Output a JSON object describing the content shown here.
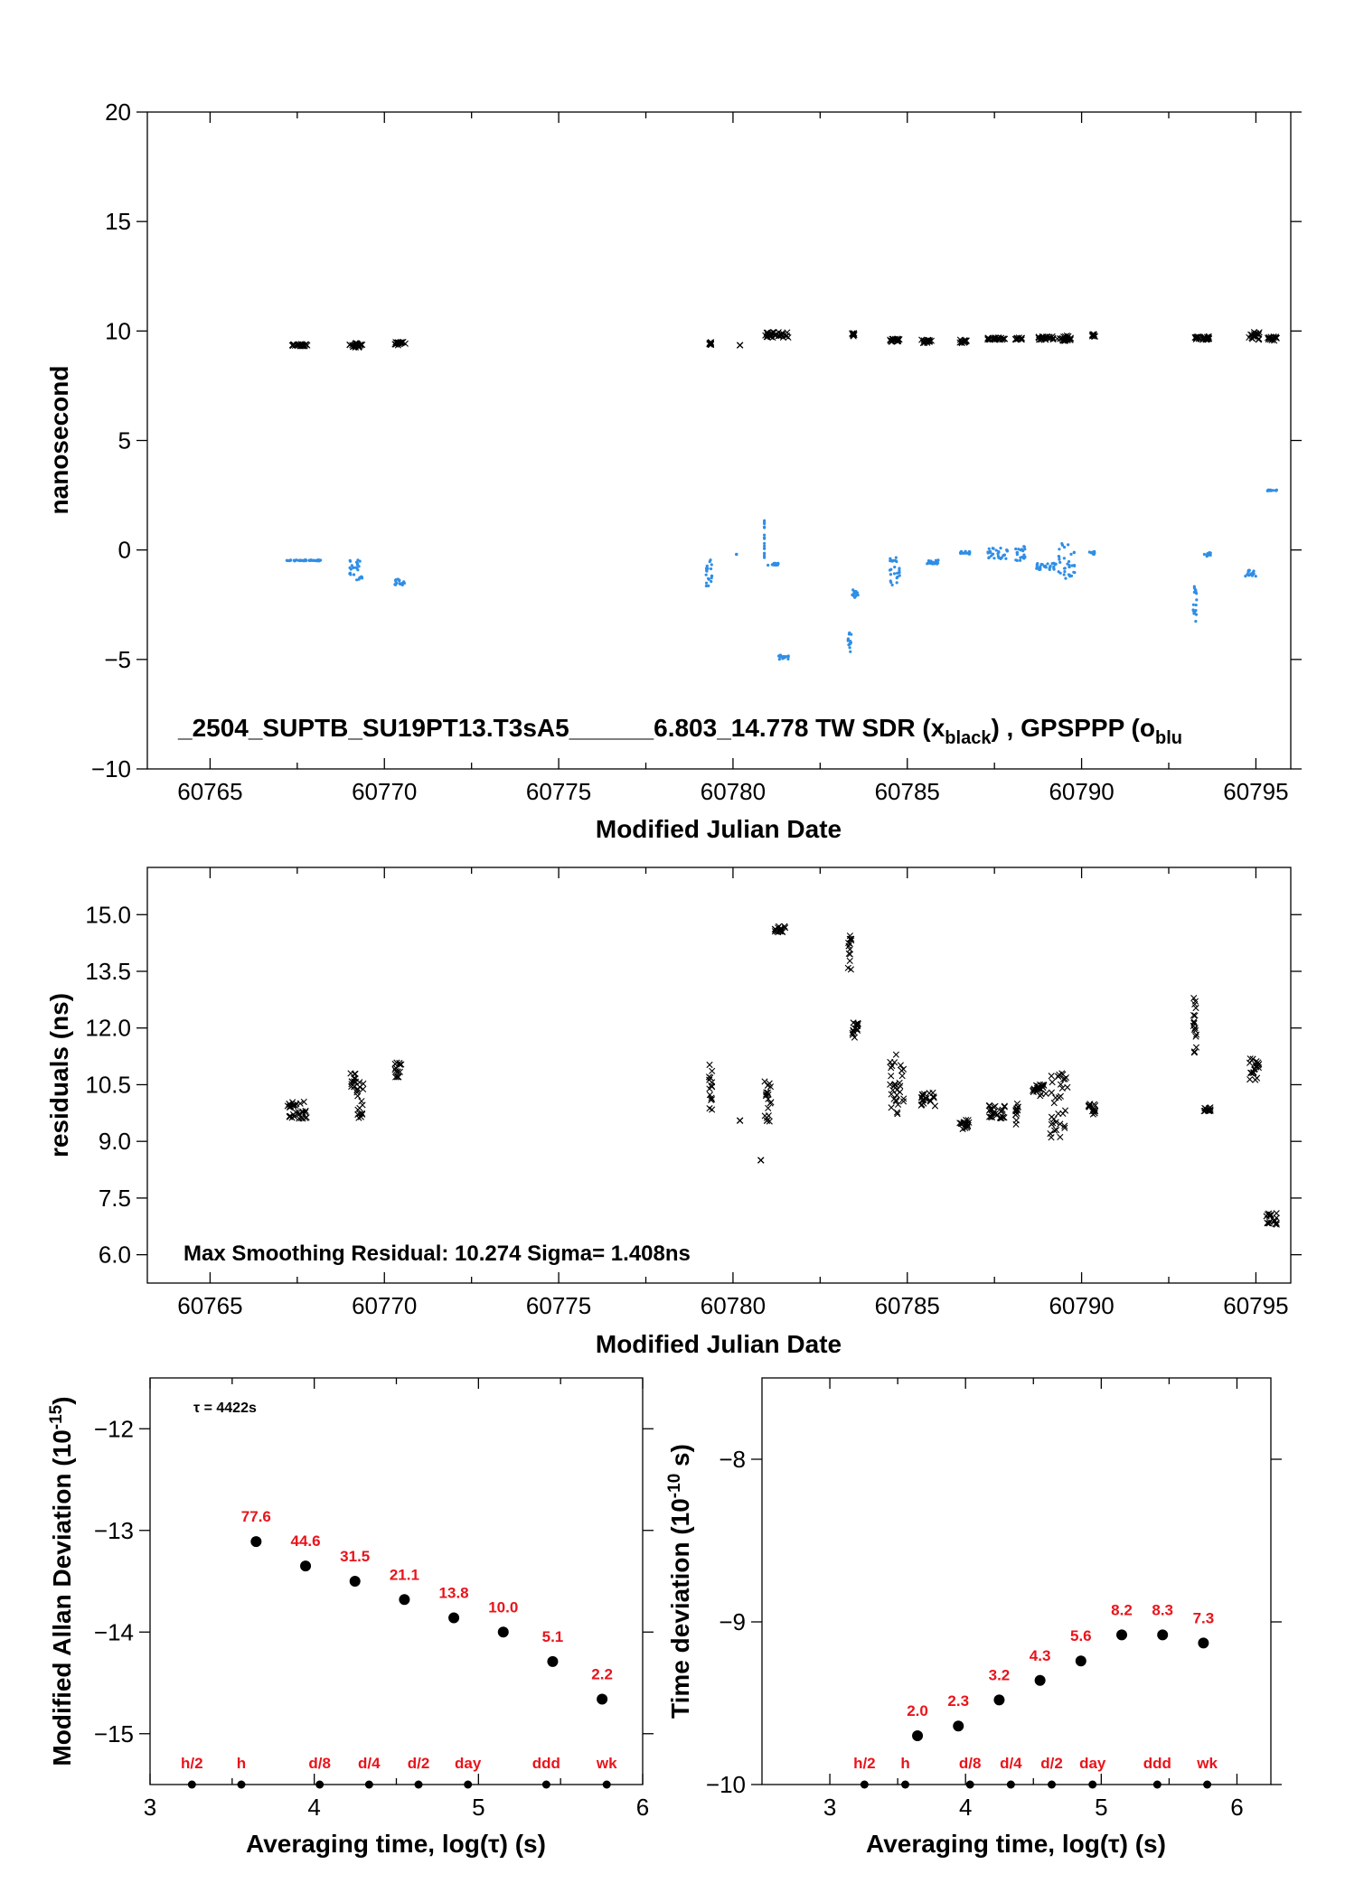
{
  "colors": {
    "axis": "#000000",
    "tw_marker": "#000000",
    "ppp_marker": "#2f8ee6",
    "label_red": "#e8141b"
  },
  "chart_data": [
    {
      "id": "top",
      "type": "scatter",
      "ylabel": "nanosecond",
      "xlabel": "Modified Julian Date",
      "xlim": [
        60763.2,
        60796.0
      ],
      "ylim": [
        -10,
        20
      ],
      "xticks": [
        "60765",
        "60770",
        "60775",
        "60780",
        "60785",
        "60790",
        "60795"
      ],
      "xtick_values": [
        60765,
        60770,
        60775,
        60780,
        60785,
        60790,
        60795
      ],
      "yticks": [
        "−10",
        "−5",
        "0",
        "5",
        "10",
        "15",
        "20"
      ],
      "ytick_values": [
        -10,
        -5,
        0,
        5,
        10,
        15,
        20
      ],
      "annotation": "_2504_SUPTB_SU19PT13.T3sA5______6.803_14.778    TW SDR (x",
      "annotation_sub1": "black",
      "annotation_mid": ") ,  GPSPPP (o",
      "annotation_sub2": "blu",
      "series": [
        {
          "marker": "x",
          "color": "#000000",
          "clusters": [
            {
              "x": [
                60767.3,
                60767.8
              ],
              "y": [
                9.3,
                9.4
              ]
            },
            {
              "x": [
                60769.0,
                60769.4
              ],
              "y": [
                9.25,
                9.45
              ]
            },
            {
              "x": [
                60770.3,
                60770.6
              ],
              "y": [
                9.35,
                9.5
              ]
            },
            {
              "x": [
                60779.3,
                60779.4
              ],
              "y": [
                9.35,
                9.5
              ]
            },
            {
              "x": [
                60780.2,
                60780.2
              ],
              "y": [
                9.35,
                9.35
              ]
            },
            {
              "x": [
                60780.9,
                60781.6
              ],
              "y": [
                9.7,
                9.95
              ]
            },
            {
              "x": [
                60783.4,
                60783.5
              ],
              "y": [
                9.75,
                9.9
              ]
            },
            {
              "x": [
                60784.5,
                60784.8
              ],
              "y": [
                9.5,
                9.65
              ]
            },
            {
              "x": [
                60785.4,
                60785.7
              ],
              "y": [
                9.45,
                9.6
              ]
            },
            {
              "x": [
                60786.5,
                60786.7
              ],
              "y": [
                9.45,
                9.6
              ]
            },
            {
              "x": [
                60787.3,
                60787.8
              ],
              "y": [
                9.6,
                9.7
              ]
            },
            {
              "x": [
                60788.1,
                60788.3
              ],
              "y": [
                9.6,
                9.7
              ]
            },
            {
              "x": [
                60788.7,
                60789.2
              ],
              "y": [
                9.6,
                9.75
              ]
            },
            {
              "x": [
                60789.3,
                60789.7
              ],
              "y": [
                9.55,
                9.8
              ]
            },
            {
              "x": [
                60790.3,
                60790.4
              ],
              "y": [
                9.75,
                9.85
              ]
            },
            {
              "x": [
                60793.2,
                60793.7
              ],
              "y": [
                9.6,
                9.75
              ]
            },
            {
              "x": [
                60794.8,
                60795.1
              ],
              "y": [
                9.6,
                9.95
              ]
            },
            {
              "x": [
                60795.3,
                60795.6
              ],
              "y": [
                9.55,
                9.75
              ]
            }
          ]
        },
        {
          "marker": "o",
          "color": "#2f8ee6",
          "clusters": [
            {
              "x": [
                60767.2,
                60768.2
              ],
              "y": [
                -0.5,
                -0.45
              ]
            },
            {
              "x": [
                60769.0,
                60769.4
              ],
              "y": [
                -1.4,
                -0.4
              ]
            },
            {
              "x": [
                60770.3,
                60770.6
              ],
              "y": [
                -1.6,
                -1.3
              ]
            },
            {
              "x": [
                60779.2,
                60779.4
              ],
              "y": [
                -1.7,
                -0.4
              ]
            },
            {
              "x": [
                60780.1,
                60780.1
              ],
              "y": [
                -0.2,
                -0.2
              ]
            },
            {
              "x": [
                60780.9,
                60780.9
              ],
              "y": [
                -0.5,
                1.5
              ]
            },
            {
              "x": [
                60781.0,
                60781.3
              ],
              "y": [
                -0.7,
                -0.6
              ]
            },
            {
              "x": [
                60781.3,
                60781.6
              ],
              "y": [
                -5.0,
                -4.8
              ]
            },
            {
              "x": [
                60783.3,
                60783.4
              ],
              "y": [
                -4.7,
                -3.7
              ]
            },
            {
              "x": [
                60783.4,
                60783.6
              ],
              "y": [
                -2.2,
                -1.8
              ]
            },
            {
              "x": [
                60784.5,
                60784.8
              ],
              "y": [
                -1.6,
                -0.3
              ]
            },
            {
              "x": [
                60785.5,
                60785.9
              ],
              "y": [
                -0.65,
                -0.45
              ]
            },
            {
              "x": [
                60786.5,
                60786.8
              ],
              "y": [
                -0.2,
                -0.05
              ]
            },
            {
              "x": [
                60787.3,
                60787.9
              ],
              "y": [
                -0.4,
                0.1
              ]
            },
            {
              "x": [
                60788.1,
                60788.4
              ],
              "y": [
                -0.5,
                0.2
              ]
            },
            {
              "x": [
                60788.7,
                60789.3
              ],
              "y": [
                -0.9,
                -0.6
              ]
            },
            {
              "x": [
                60789.3,
                60789.8
              ],
              "y": [
                -1.3,
                0.3
              ]
            },
            {
              "x": [
                60790.2,
                60790.4
              ],
              "y": [
                -0.2,
                -0.05
              ]
            },
            {
              "x": [
                60793.2,
                60793.3
              ],
              "y": [
                -3.3,
                -1.5
              ]
            },
            {
              "x": [
                60793.5,
                60793.7
              ],
              "y": [
                -0.3,
                -0.1
              ]
            },
            {
              "x": [
                60794.7,
                60795.0
              ],
              "y": [
                -1.2,
                -0.9
              ]
            },
            {
              "x": [
                60795.3,
                60795.6
              ],
              "y": [
                2.7,
                2.75
              ]
            }
          ]
        }
      ]
    },
    {
      "id": "residuals",
      "type": "scatter",
      "ylabel": "residuals (ns)",
      "xlabel": "Modified Julian Date",
      "xlim": [
        60763.2,
        60796.0
      ],
      "ylim": [
        5.25,
        16.25
      ],
      "xticks": [
        "60765",
        "60770",
        "60775",
        "60780",
        "60785",
        "60790",
        "60795"
      ],
      "xtick_values": [
        60765,
        60770,
        60775,
        60780,
        60785,
        60790,
        60795
      ],
      "yticks": [
        "6.0",
        "7.5",
        "9.0",
        "10.5",
        "12.0",
        "13.5",
        "15.0"
      ],
      "ytick_values": [
        6.0,
        7.5,
        9.0,
        10.5,
        12.0,
        13.5,
        15.0
      ],
      "annotation": "Max Smoothing Residual: 10.274  Sigma= 1.408ns",
      "series": [
        {
          "marker": "x",
          "color": "#000000",
          "clusters": [
            {
              "x": [
                60767.2,
                60767.8
              ],
              "y": [
                9.6,
                10.05
              ]
            },
            {
              "x": [
                60769.0,
                60769.2
              ],
              "y": [
                10.4,
                10.8
              ]
            },
            {
              "x": [
                60769.2,
                60769.4
              ],
              "y": [
                9.6,
                10.6
              ]
            },
            {
              "x": [
                60770.3,
                60770.5
              ],
              "y": [
                10.7,
                11.1
              ]
            },
            {
              "x": [
                60779.3,
                60779.4
              ],
              "y": [
                9.7,
                11.1
              ]
            },
            {
              "x": [
                60780.2,
                60780.2
              ],
              "y": [
                9.55,
                9.55
              ]
            },
            {
              "x": [
                60780.8,
                60780.8
              ],
              "y": [
                8.5,
                8.5
              ]
            },
            {
              "x": [
                60780.9,
                60781.1
              ],
              "y": [
                9.5,
                10.6
              ]
            },
            {
              "x": [
                60781.2,
                60781.5
              ],
              "y": [
                14.5,
                14.7
              ]
            },
            {
              "x": [
                60783.3,
                60783.4
              ],
              "y": [
                13.5,
                14.5
              ]
            },
            {
              "x": [
                60783.4,
                60783.6
              ],
              "y": [
                11.7,
                12.2
              ]
            },
            {
              "x": [
                60784.5,
                60784.9
              ],
              "y": [
                9.7,
                11.3
              ]
            },
            {
              "x": [
                60785.4,
                60785.8
              ],
              "y": [
                9.9,
                10.3
              ]
            },
            {
              "x": [
                60786.5,
                60786.8
              ],
              "y": [
                9.3,
                9.6
              ]
            },
            {
              "x": [
                60787.3,
                60787.8
              ],
              "y": [
                9.6,
                10.0
              ]
            },
            {
              "x": [
                60788.1,
                60788.2
              ],
              "y": [
                9.4,
                10.0
              ]
            },
            {
              "x": [
                60788.6,
                60789.0
              ],
              "y": [
                10.2,
                10.5
              ]
            },
            {
              "x": [
                60789.1,
                60789.6
              ],
              "y": [
                9.1,
                10.8
              ]
            },
            {
              "x": [
                60790.2,
                60790.4
              ],
              "y": [
                9.7,
                10.0
              ]
            },
            {
              "x": [
                60793.2,
                60793.3
              ],
              "y": [
                11.3,
                12.9
              ]
            },
            {
              "x": [
                60793.5,
                60793.7
              ],
              "y": [
                9.8,
                9.9
              ]
            },
            {
              "x": [
                60794.8,
                60795.1
              ],
              "y": [
                10.6,
                11.2
              ]
            },
            {
              "x": [
                60795.3,
                60795.6
              ],
              "y": [
                6.8,
                7.1
              ]
            }
          ]
        }
      ]
    },
    {
      "id": "mdev",
      "type": "scatter",
      "ylabel": "Modified Allan Deviation (10",
      "ylabel_sup": "-15",
      "ylabel_tail": ")",
      "xlabel": "Averaging time, log(τ) (s)",
      "xlim": [
        3,
        6
      ],
      "ylim": [
        -15.5,
        -11.5
      ],
      "xticks": [
        "3",
        "4",
        "5",
        "6"
      ],
      "xtick_values": [
        3,
        4,
        5,
        6
      ],
      "yticks": [
        "−15",
        "−14",
        "−13",
        "−12"
      ],
      "ytick_values": [
        -15,
        -14,
        -13,
        -12
      ],
      "annotation": "τ = 4422s",
      "x": [
        3.646,
        3.947,
        4.248,
        4.549,
        4.85,
        5.151,
        5.452,
        5.753
      ],
      "y": [
        -13.11,
        -13.35,
        -13.5,
        -13.68,
        -13.86,
        -14.0,
        -14.29,
        -14.66
      ],
      "point_labels": [
        "77.6",
        "44.6",
        "31.5",
        "21.1",
        "13.8",
        "10.0",
        "5.1",
        "2.2"
      ],
      "marker_labels": [
        "h/2",
        "h",
        "d/8",
        "d/4",
        "d/2",
        "day",
        "ddd",
        "wk"
      ],
      "marker_x": [
        3.255,
        3.556,
        4.033,
        4.334,
        4.635,
        4.936,
        5.413,
        5.781
      ]
    },
    {
      "id": "tdev",
      "type": "scatter",
      "ylabel": "Time deviation (10",
      "ylabel_sup": "-10",
      "ylabel_tail": " s)",
      "xlabel": "Averaging time, log(τ) (s)",
      "xlim": [
        2.5,
        6.25
      ],
      "ylim": [
        -10,
        -7.5
      ],
      "xticks": [
        "3",
        "4",
        "5",
        "6"
      ],
      "xtick_values": [
        3,
        4,
        5,
        6
      ],
      "yticks": [
        "−10",
        "−9",
        "−8"
      ],
      "ytick_values": [
        -10,
        -9,
        -8
      ],
      "x": [
        3.646,
        3.947,
        4.248,
        4.549,
        4.85,
        5.151,
        5.452,
        5.753
      ],
      "y": [
        -9.7,
        -9.64,
        -9.48,
        -9.36,
        -9.24,
        -9.08,
        -9.08,
        -9.13
      ],
      "point_labels": [
        "2.0",
        "2.3",
        "3.2",
        "4.3",
        "5.6",
        "8.2",
        "8.3",
        "7.3"
      ],
      "marker_labels": [
        "h/2",
        "h",
        "d/8",
        "d/4",
        "d/2",
        "day",
        "ddd",
        "wk"
      ],
      "marker_x": [
        3.255,
        3.556,
        4.033,
        4.334,
        4.635,
        4.936,
        5.413,
        5.781
      ]
    }
  ]
}
